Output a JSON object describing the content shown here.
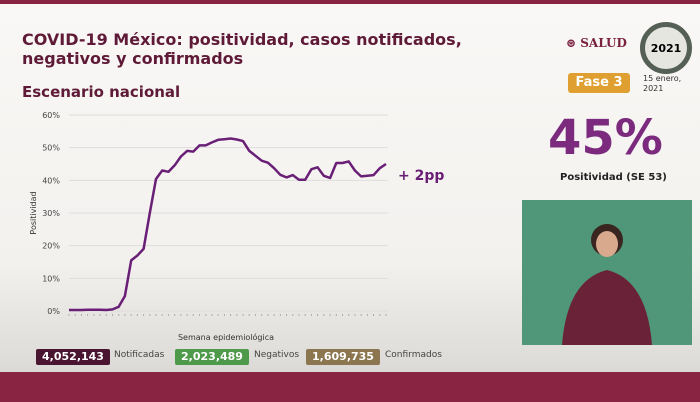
{
  "header": {
    "title": "COVID-19 México: positividad, casos notificados, negativos y confirmados",
    "subtitle": "Escenario nacional",
    "logo": "SALUD",
    "seal": "2021",
    "phase": "Fase 3",
    "date_line1": "15 enero,",
    "date_line2": "2021"
  },
  "kpi": {
    "value": "45%",
    "label": "Positividad (SE 53)"
  },
  "chart_data": {
    "type": "line",
    "title": "",
    "xlabel": "Semana epidemiológica",
    "ylabel": "Positividad",
    "ylim": [
      0,
      60
    ],
    "yticks": [
      "0%",
      "10%",
      "20%",
      "30%",
      "40%",
      "50%",
      "60%"
    ],
    "grid": true,
    "annotation": "+ 2pp",
    "color": "#6a1f76",
    "values": [
      0.3,
      0.3,
      0.3,
      0.4,
      0.4,
      0.4,
      0.3,
      0.5,
      1.3,
      4.6,
      15.5,
      17,
      19,
      30,
      40.4,
      43,
      42.6,
      44.6,
      47.3,
      49,
      48.8,
      50.7,
      50.7,
      51.6,
      52.4,
      52.6,
      52.8,
      52.5,
      52,
      49,
      47.5,
      46,
      45.4,
      43.7,
      41.7,
      40.9,
      41.6,
      40.2,
      40.2,
      43.4,
      44,
      41.4,
      40.7,
      45.3,
      45.3,
      45.8,
      43,
      41.2,
      41.4,
      41.6,
      43.7,
      45
    ]
  },
  "totals": [
    {
      "value": "4,052,143",
      "label": "Notificadas",
      "color": "#4a1530"
    },
    {
      "value": "2,023,489",
      "label": "Negativos",
      "color": "#4f9a4a"
    },
    {
      "value": "1,609,735",
      "label": "Confirmados",
      "color": "#8b7650"
    }
  ]
}
